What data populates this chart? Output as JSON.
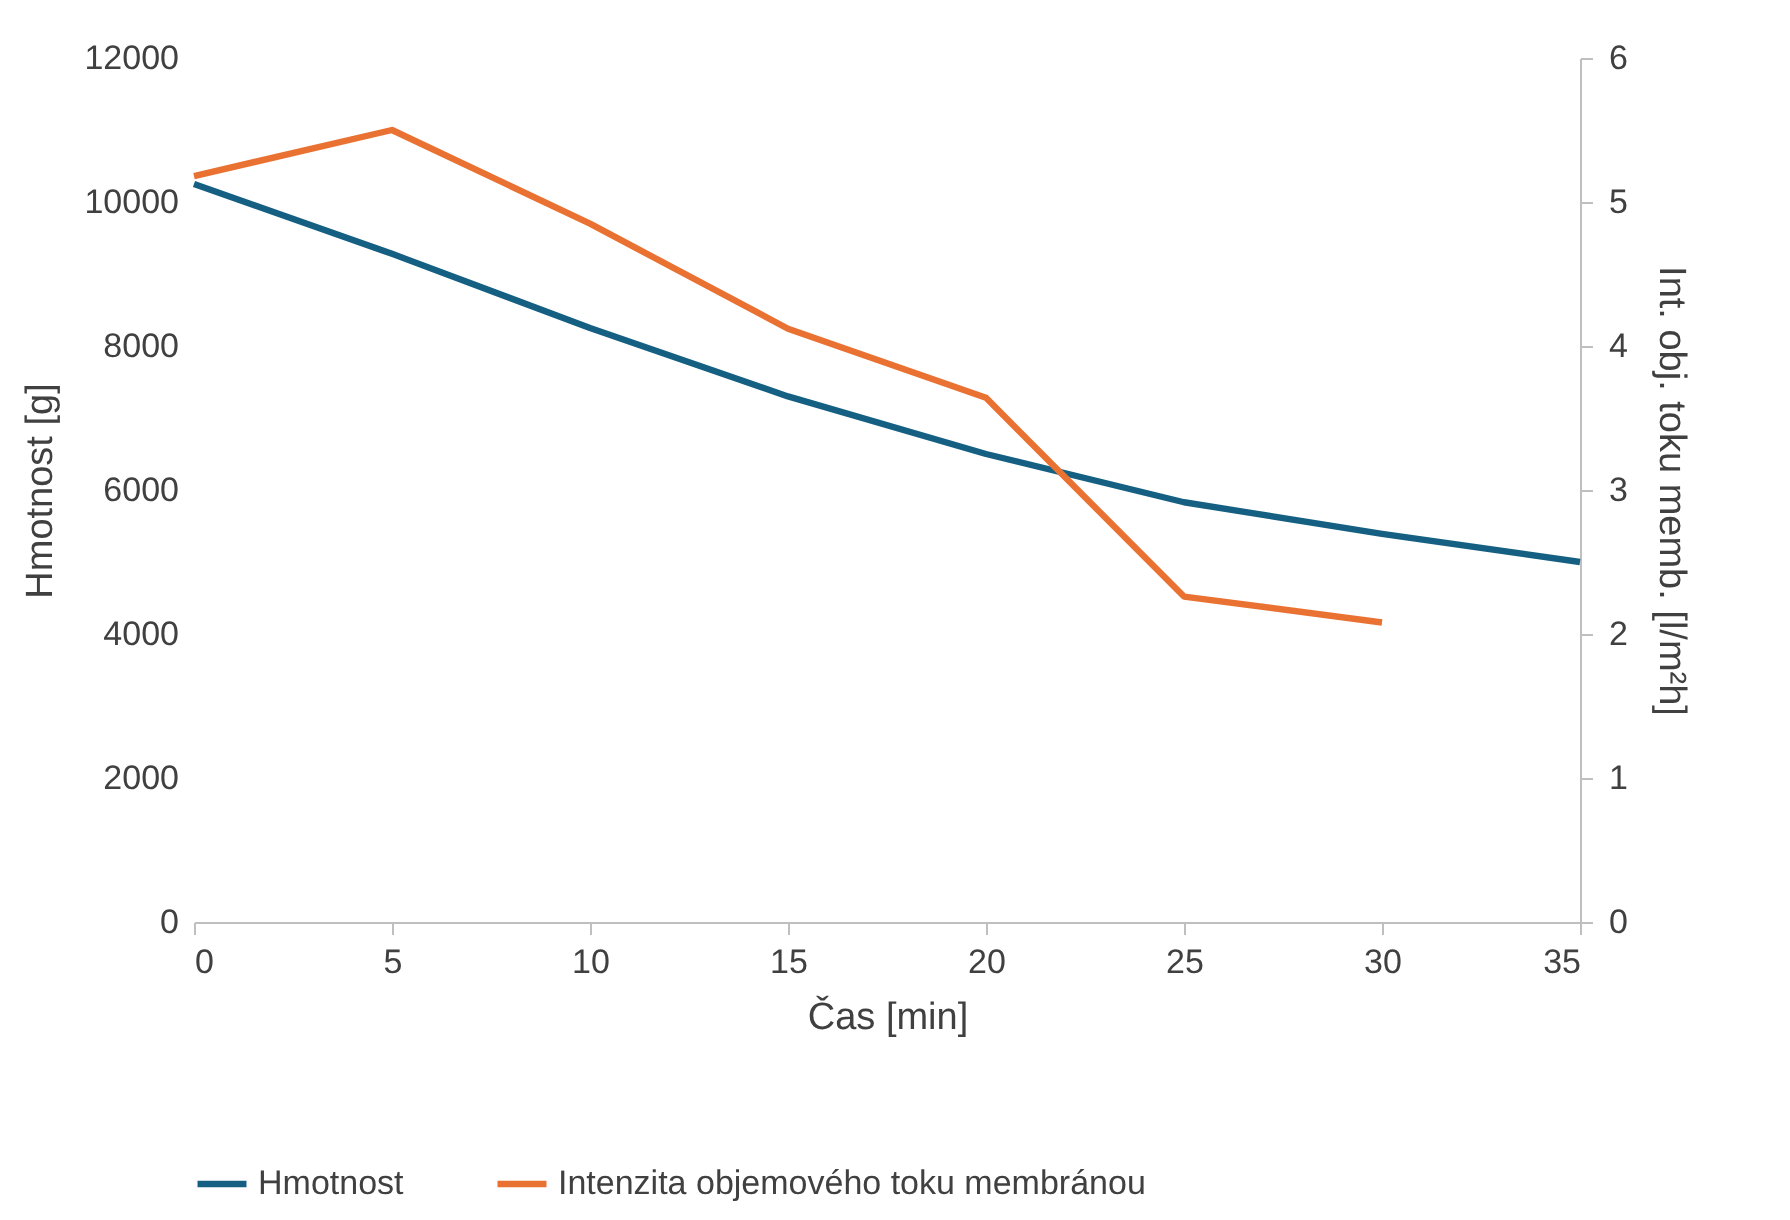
{
  "chart_data": {
    "type": "line",
    "xlabel": "Čas [min]",
    "ylabel": "Hmotnost [g]",
    "y2label": "Int. obj. toku memb. [l/m²h]",
    "xlim": [
      0,
      35
    ],
    "xticks": [
      0,
      5,
      10,
      15,
      20,
      25,
      30,
      35
    ],
    "ylim": [
      0,
      12000
    ],
    "yticks": [
      0,
      2000,
      4000,
      6000,
      8000,
      10000,
      12000
    ],
    "y2lim": [
      0,
      6
    ],
    "y2ticks": [
      0,
      1,
      2,
      3,
      4,
      5,
      6
    ],
    "grid": false,
    "legend": "bottom",
    "line_style": "solid",
    "series": [
      {
        "name": "Hmotnost",
        "color": "#156082",
        "x": [
          0,
          5,
          10,
          15,
          20,
          25,
          30,
          35
        ],
        "values": [
          10250,
          9280,
          8250,
          7300,
          6500,
          5830,
          5390,
          5000
        ]
      },
      {
        "name": "Intenzita objemového toku membránou",
        "color": "#e97132",
        "axis": "y2",
        "x": [
          0,
          5,
          10,
          15,
          20,
          25,
          30
        ],
        "values": [
          5.18,
          5.5,
          4.85,
          4.12,
          3.64,
          2.26,
          2.08
        ]
      }
    ]
  }
}
